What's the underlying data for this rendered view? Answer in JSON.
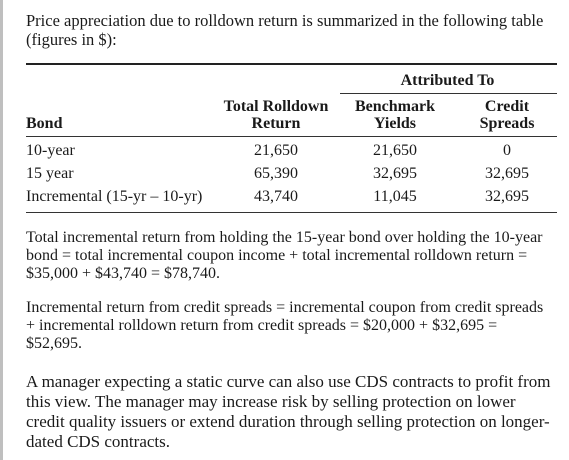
{
  "intro": "Price appreciation due to rolldown return is summarized in the following table (figures in $):",
  "table": {
    "group_header": "Attributed To",
    "columns": {
      "bond": "Bond",
      "total_line1": "Total Rolldown",
      "total_line2": "Return",
      "bench_line1": "Benchmark",
      "bench_line2": "Yields",
      "credit_line1": "Credit",
      "credit_line2": "Spreads"
    },
    "rows": [
      {
        "bond": "10-year",
        "total": "21,650",
        "bench": "21,650",
        "credit": "0"
      },
      {
        "bond": "15 year",
        "total": "65,390",
        "bench": "32,695",
        "credit": "32,695"
      },
      {
        "bond": "Incremental (15-yr – 10-yr)",
        "total": "43,740",
        "bench": "11,045",
        "credit": "32,695"
      }
    ]
  },
  "paragraphs": [
    "Total incremental return from holding the 15-year bond over holding the 10-year bond = total incremental coupon income + total incremental rolldown return = $35,000 + $43,740 = $78,740.",
    "Incremental return from credit spreads = incremental coupon from credit spreads + incremental rolldown return from credit spreads = $20,000 + $32,695 = $52,695.",
    "A manager expecting a static curve can also use CDS contracts to profit from this view. The manager may increase risk by selling protection on lower credit quality issuers or extend duration through selling protection on longer-dated CDS contracts."
  ]
}
